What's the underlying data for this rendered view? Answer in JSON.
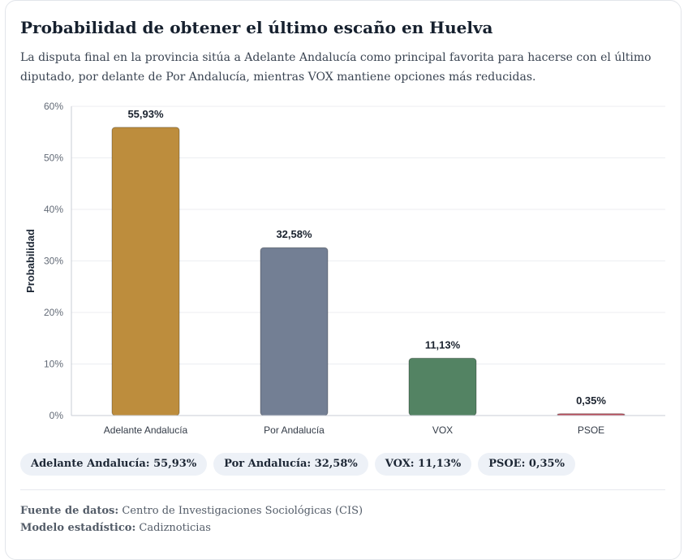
{
  "header": {
    "title": "Probabilidad de obtener el último escaño en Huelva",
    "subtitle": "La disputa final en la provincia sitúa a Adelante Andalucía como principal favorita para hacerse con el último diputado, por delante de Por Andalucía, mientras VOX mantiene opciones más reducidas."
  },
  "chart_data": {
    "type": "bar",
    "title": "Probabilidad de obtener el último escaño en Huelva",
    "xlabel": "",
    "ylabel": "Probabilidad",
    "ylim": [
      0,
      60
    ],
    "yticks": [
      0,
      10,
      20,
      30,
      40,
      50,
      60
    ],
    "ytick_labels": [
      "0%",
      "10%",
      "20%",
      "30%",
      "40%",
      "50%",
      "60%"
    ],
    "categories": [
      "Adelante Andalucía",
      "Por Andalucía",
      "VOX",
      "PSOE"
    ],
    "values": [
      55.93,
      32.58,
      11.13,
      0.35
    ],
    "value_labels": [
      "55,93%",
      "32,58%",
      "11,13%",
      "0,35%"
    ],
    "colors": [
      "#bd8d3d",
      "#737f94",
      "#538363",
      "#bf4f5c"
    ],
    "grid": true
  },
  "legend": [
    {
      "label": "Adelante Andalucía: 55,93%"
    },
    {
      "label": "Por Andalucía: 32,58%"
    },
    {
      "label": "VOX: 11,13%"
    },
    {
      "label": "PSOE: 0,35%"
    }
  ],
  "footer": {
    "source_label": "Fuente de datos:",
    "source_value": "Centro de Investigaciones Sociológicas (CIS)",
    "model_label": "Modelo estadístico:",
    "model_value": "Cadiznoticias"
  }
}
